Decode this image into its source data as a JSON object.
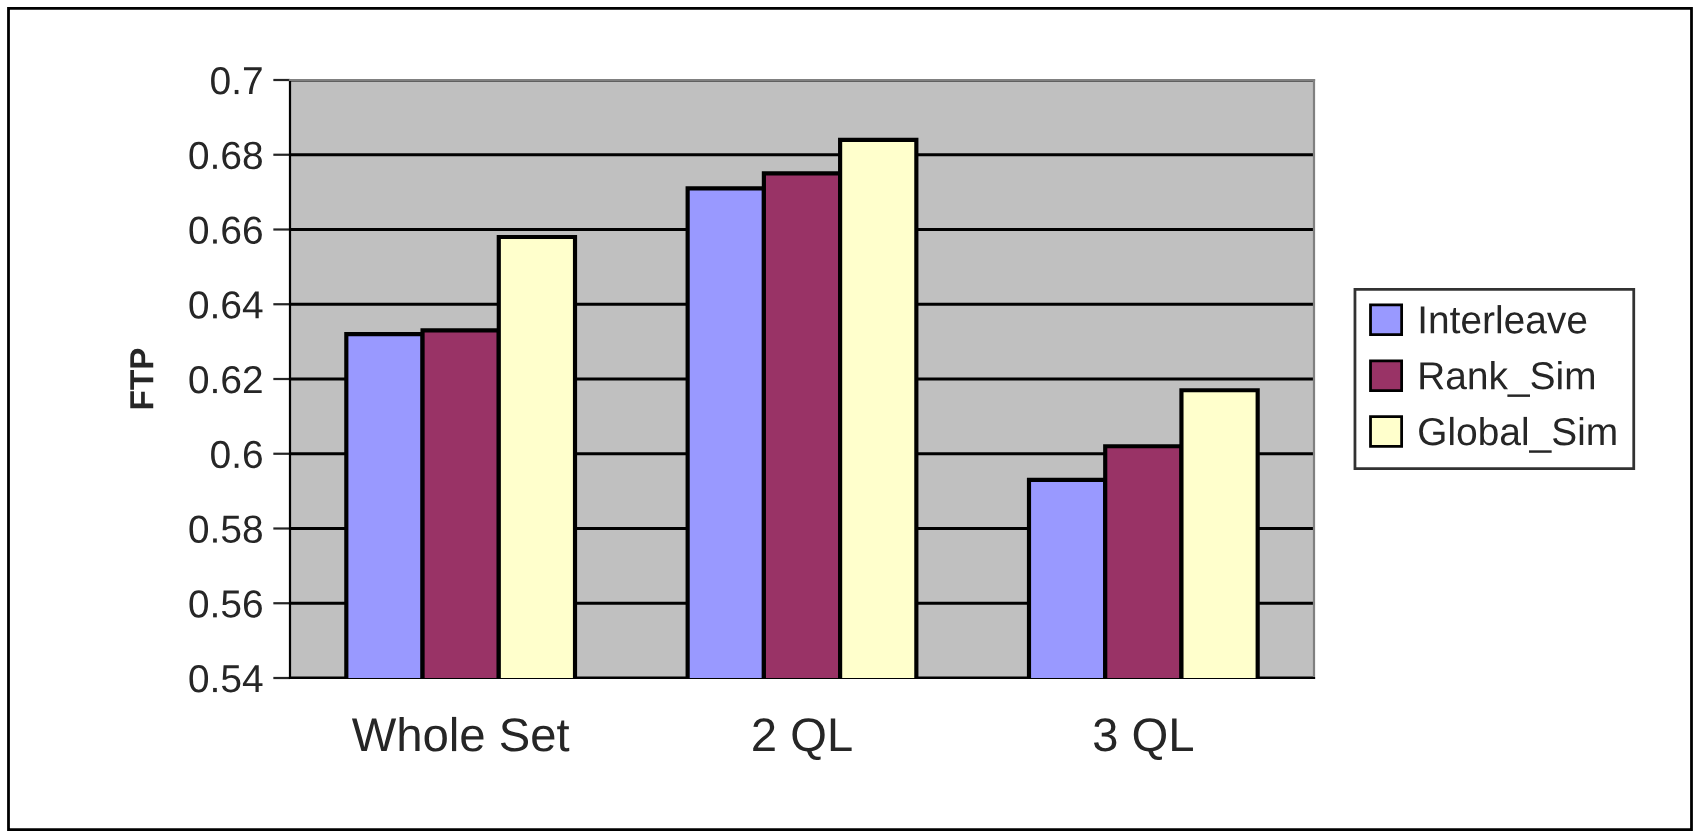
{
  "chart_data": {
    "type": "bar",
    "ylabel": "FTP",
    "categories": [
      "Whole Set",
      "2 QL",
      "3 QL"
    ],
    "series": [
      {
        "name": "Interleave",
        "color": "#9999ff",
        "values": [
          0.632,
          0.671,
          0.593
        ]
      },
      {
        "name": "Rank_Sim",
        "color": "#993366",
        "values": [
          0.633,
          0.675,
          0.602
        ]
      },
      {
        "name": "Global_Sim",
        "color": "#ffffcc",
        "values": [
          0.658,
          0.684,
          0.617
        ]
      }
    ],
    "ylim": [
      0.54,
      0.7
    ],
    "yticks": [
      0.54,
      0.56,
      0.58,
      0.6,
      0.62,
      0.64,
      0.66,
      0.68,
      0.7
    ],
    "grid": "y",
    "legend": "right"
  }
}
